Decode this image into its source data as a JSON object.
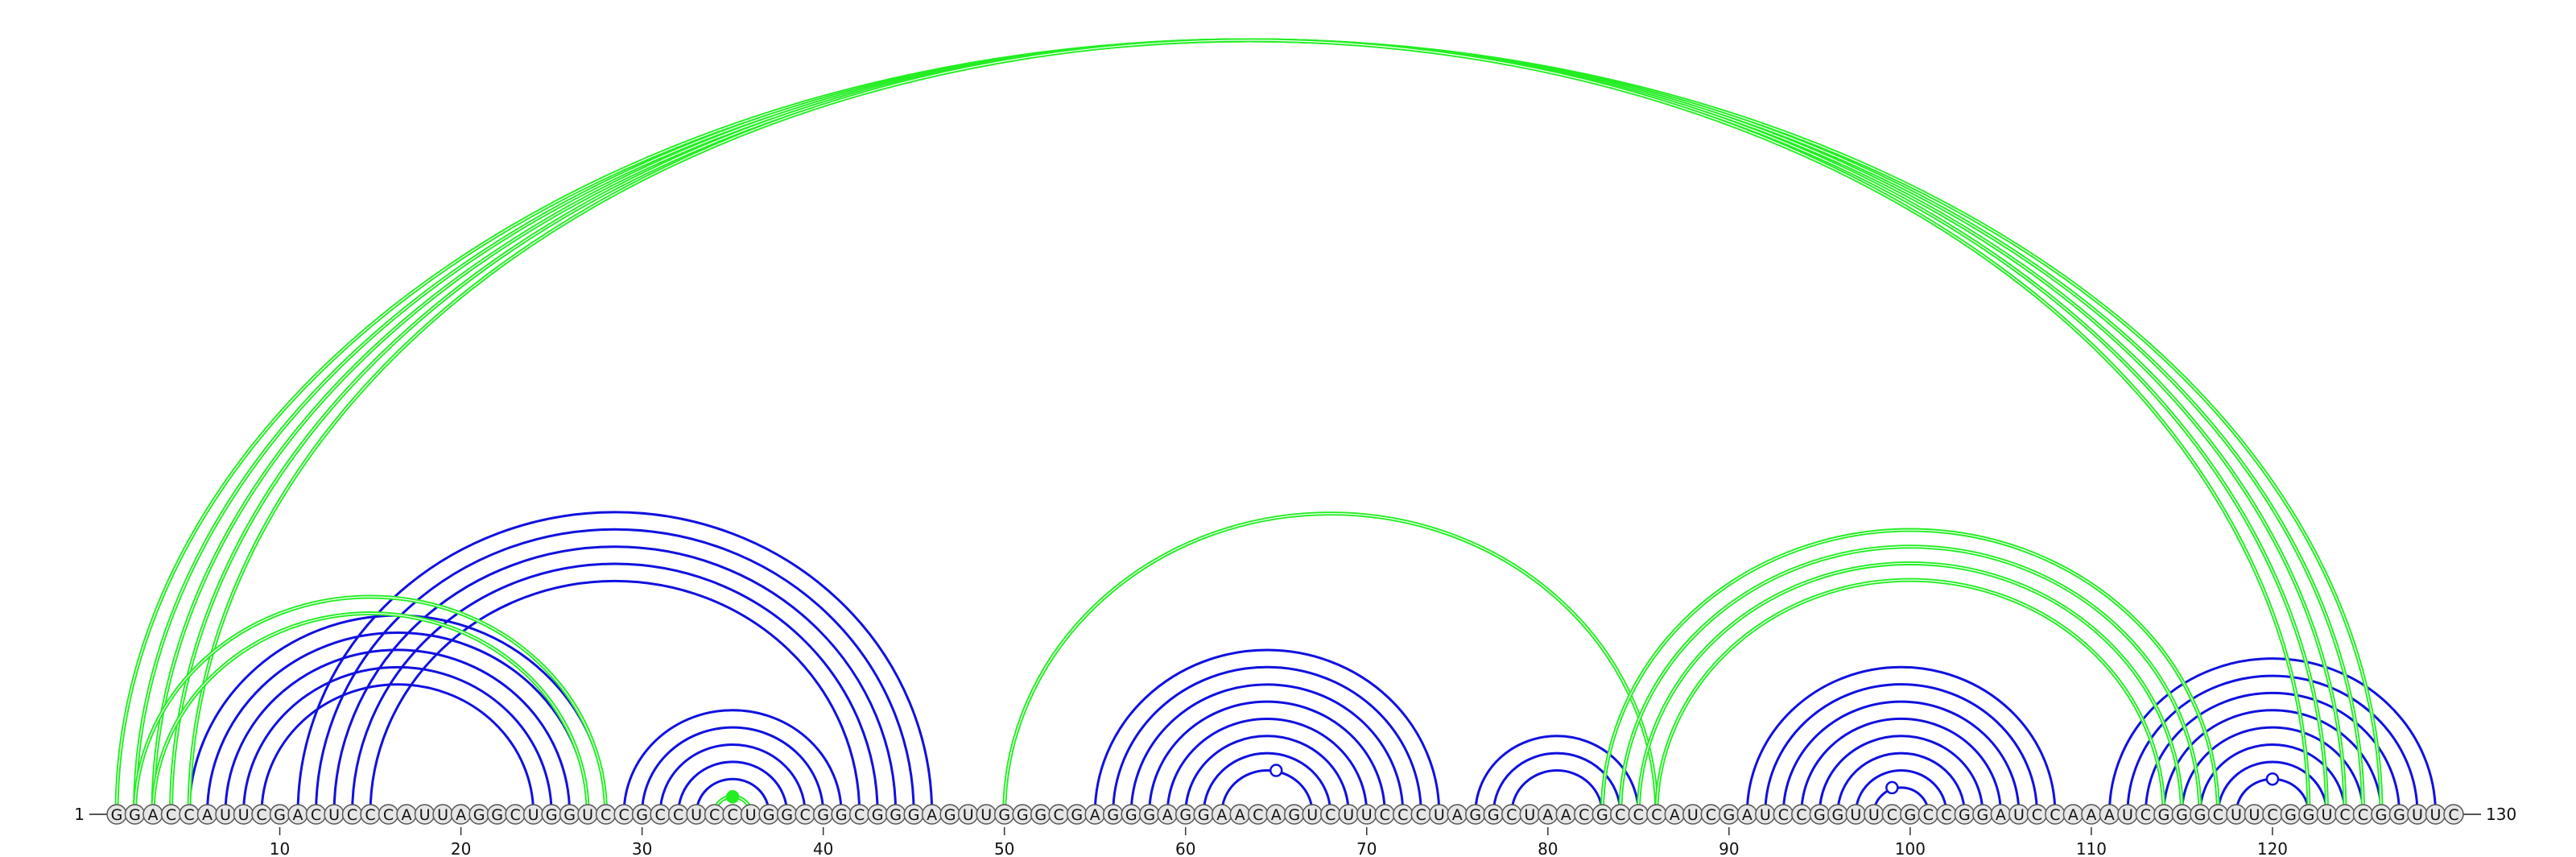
{
  "sequence": "GGACCAUUCGACUCCCAUUAGGCUGGUCCGCCUCCUGGCGGCGGGAGUUGGGCGAGGGAGGAACAGUCUUCCCUAGGCUAACGCCCAUCGAUCCGGUUCGCCGGAUCCAAAUCGGGCUUCGGUCCGGUUC",
  "start_label": "1",
  "end_label": "130",
  "ticks": [
    {
      "pos": 10,
      "label": "10"
    },
    {
      "pos": 20,
      "label": "20"
    },
    {
      "pos": 30,
      "label": "30"
    },
    {
      "pos": 40,
      "label": "40"
    },
    {
      "pos": 50,
      "label": "50"
    },
    {
      "pos": 60,
      "label": "60"
    },
    {
      "pos": 70,
      "label": "70"
    },
    {
      "pos": 80,
      "label": "80"
    },
    {
      "pos": 90,
      "label": "90"
    },
    {
      "pos": 100,
      "label": "100"
    },
    {
      "pos": 110,
      "label": "110"
    },
    {
      "pos": 120,
      "label": "120"
    }
  ],
  "colors": {
    "canonical_arc": "#1010e0",
    "noncanonical_arc": "#22ee22",
    "nucleotide_fill": "#e6e6e6",
    "nucleotide_stroke": "#555555",
    "text": "#111111"
  },
  "pairs": [
    {
      "i": 5,
      "j": 28,
      "type": "canonical"
    },
    {
      "i": 6,
      "j": 27,
      "type": "canonical"
    },
    {
      "i": 7,
      "j": 26,
      "type": "canonical"
    },
    {
      "i": 8,
      "j": 25,
      "type": "canonical"
    },
    {
      "i": 9,
      "j": 24,
      "type": "canonical"
    },
    {
      "i": 11,
      "j": 46,
      "type": "canonical"
    },
    {
      "i": 12,
      "j": 45,
      "type": "canonical"
    },
    {
      "i": 13,
      "j": 44,
      "type": "canonical"
    },
    {
      "i": 14,
      "j": 43,
      "type": "canonical"
    },
    {
      "i": 15,
      "j": 42,
      "type": "canonical"
    },
    {
      "i": 29,
      "j": 41,
      "type": "canonical"
    },
    {
      "i": 30,
      "j": 40,
      "type": "canonical"
    },
    {
      "i": 31,
      "j": 39,
      "type": "canonical"
    },
    {
      "i": 32,
      "j": 38,
      "type": "canonical"
    },
    {
      "i": 33,
      "j": 37,
      "type": "canonical"
    },
    {
      "i": 55,
      "j": 74,
      "type": "canonical"
    },
    {
      "i": 56,
      "j": 73,
      "type": "canonical"
    },
    {
      "i": 57,
      "j": 72,
      "type": "canonical"
    },
    {
      "i": 58,
      "j": 71,
      "type": "canonical"
    },
    {
      "i": 59,
      "j": 70,
      "type": "canonical"
    },
    {
      "i": 60,
      "j": 69,
      "type": "canonical"
    },
    {
      "i": 61,
      "j": 68,
      "type": "canonical"
    },
    {
      "i": 62,
      "j": 67,
      "type": "canonical"
    },
    {
      "i": 76,
      "j": 85,
      "type": "canonical"
    },
    {
      "i": 77,
      "j": 84,
      "type": "canonical"
    },
    {
      "i": 78,
      "j": 83,
      "type": "canonical"
    },
    {
      "i": 91,
      "j": 108,
      "type": "canonical"
    },
    {
      "i": 92,
      "j": 107,
      "type": "canonical"
    },
    {
      "i": 93,
      "j": 106,
      "type": "canonical"
    },
    {
      "i": 94,
      "j": 105,
      "type": "canonical"
    },
    {
      "i": 95,
      "j": 104,
      "type": "canonical"
    },
    {
      "i": 96,
      "j": 103,
      "type": "canonical"
    },
    {
      "i": 97,
      "j": 102,
      "type": "canonical"
    },
    {
      "i": 98,
      "j": 101,
      "type": "canonical"
    },
    {
      "i": 111,
      "j": 129,
      "type": "canonical"
    },
    {
      "i": 112,
      "j": 128,
      "type": "canonical"
    },
    {
      "i": 113,
      "j": 127,
      "type": "canonical"
    },
    {
      "i": 114,
      "j": 126,
      "type": "canonical"
    },
    {
      "i": 115,
      "j": 125,
      "type": "canonical"
    },
    {
      "i": 116,
      "j": 124,
      "type": "canonical"
    },
    {
      "i": 117,
      "j": 123,
      "type": "canonical"
    },
    {
      "i": 118,
      "j": 122,
      "type": "canonical"
    },
    {
      "i": 1,
      "j": 126,
      "type": "noncanonical"
    },
    {
      "i": 2,
      "j": 125,
      "type": "noncanonical"
    },
    {
      "i": 3,
      "j": 124,
      "type": "noncanonical"
    },
    {
      "i": 4,
      "j": 123,
      "type": "noncanonical"
    },
    {
      "i": 5,
      "j": 122,
      "type": "noncanonical"
    },
    {
      "i": 2,
      "j": 28,
      "type": "noncanonical"
    },
    {
      "i": 3,
      "j": 27,
      "type": "noncanonical"
    },
    {
      "i": 34,
      "j": 36,
      "type": "noncanonical"
    },
    {
      "i": 50,
      "j": 86,
      "type": "noncanonical"
    },
    {
      "i": 83,
      "j": 117,
      "type": "noncanonical"
    },
    {
      "i": 84,
      "j": 116,
      "type": "noncanonical"
    },
    {
      "i": 85,
      "j": 115,
      "type": "noncanonical"
    },
    {
      "i": 86,
      "j": 114,
      "type": "noncanonical"
    }
  ],
  "markers": [
    {
      "pos": 35,
      "style": "filled",
      "type": "noncanonical"
    },
    {
      "pos": 65,
      "style": "open",
      "type": "canonical"
    },
    {
      "pos": 99,
      "style": "open",
      "type": "canonical"
    },
    {
      "pos": 120,
      "style": "open",
      "type": "canonical"
    }
  ]
}
